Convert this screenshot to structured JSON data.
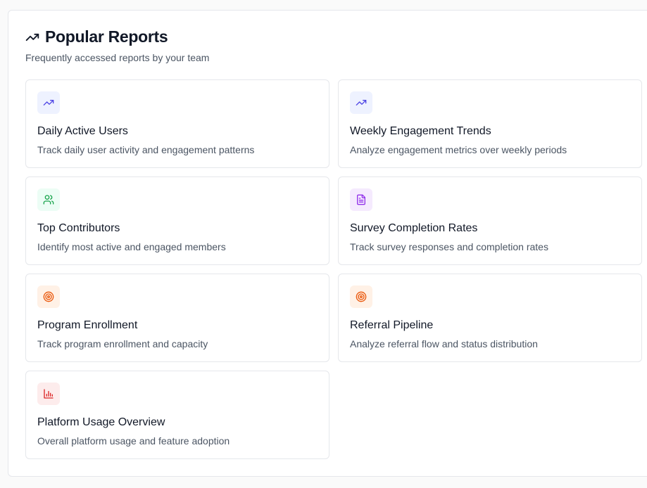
{
  "header": {
    "icon": "trending-up-icon",
    "title": "Popular Reports",
    "subtitle": "Frequently accessed reports by your team"
  },
  "reports": [
    {
      "icon": "trending-up-icon",
      "color": "#4f46e5",
      "title": "Daily Active Users",
      "description": "Track daily user activity and engagement patterns"
    },
    {
      "icon": "trending-up-icon",
      "color": "#4f46e5",
      "title": "Weekly Engagement Trends",
      "description": "Analyze engagement metrics over weekly periods"
    },
    {
      "icon": "users-icon",
      "color": "#16a34a",
      "title": "Top Contributors",
      "description": "Identify most active and engaged members"
    },
    {
      "icon": "file-text-icon",
      "color": "#9333ea",
      "title": "Survey Completion Rates",
      "description": "Track survey responses and completion rates"
    },
    {
      "icon": "target-icon",
      "color": "#ea580c",
      "title": "Program Enrollment",
      "description": "Track program enrollment and capacity"
    },
    {
      "icon": "target-icon",
      "color": "#ea580c",
      "title": "Referral Pipeline",
      "description": "Analyze referral flow and status distribution"
    },
    {
      "icon": "bar-chart-icon",
      "color": "#dc2626",
      "title": "Platform Usage Overview",
      "description": "Overall platform usage and feature adoption"
    }
  ]
}
